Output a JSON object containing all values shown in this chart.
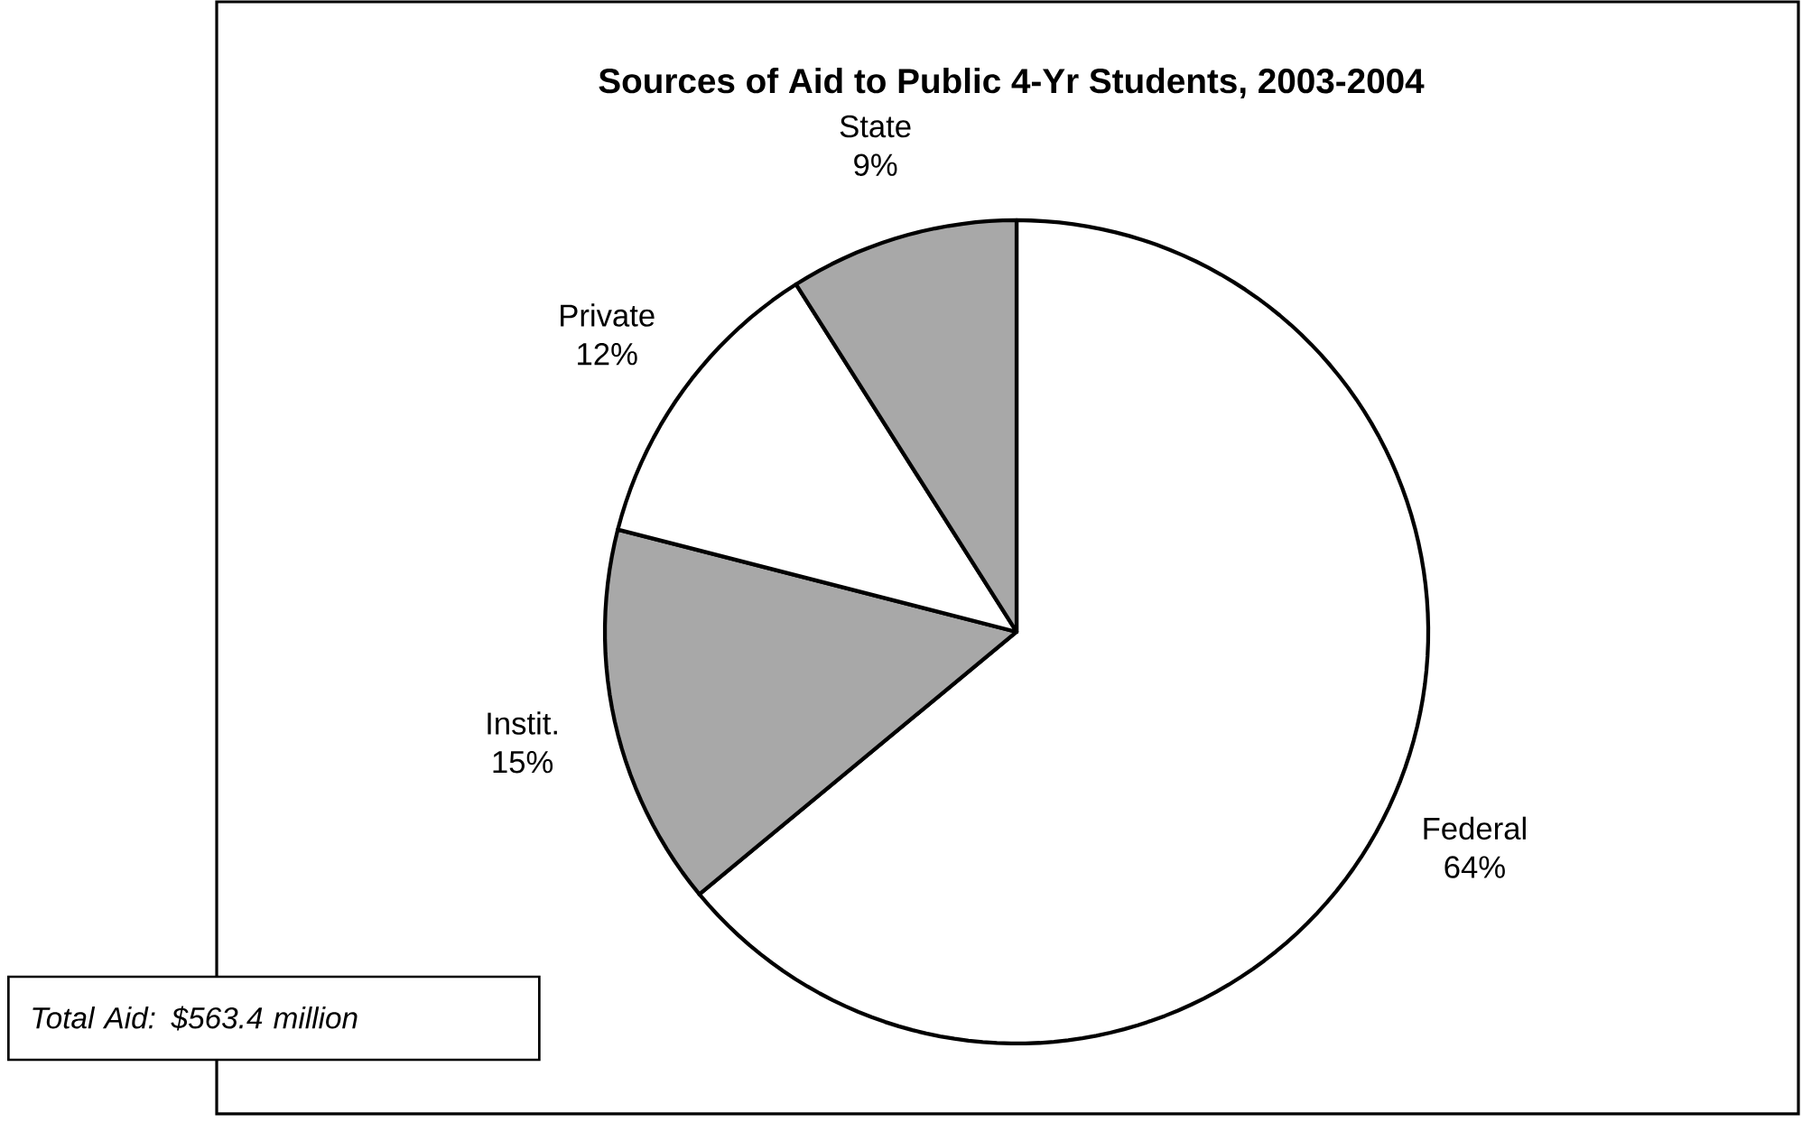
{
  "chart_data": {
    "type": "pie",
    "title": "Sources of Aid to Public 4-Yr Students, 2003-2004",
    "categories": [
      "Federal",
      "Instit.",
      "Private",
      "State"
    ],
    "values": [
      64,
      15,
      12,
      9
    ],
    "value_labels": [
      "64%",
      "15%",
      "12%",
      "9%"
    ],
    "colors": [
      "#ffffff",
      "#a8a8a8",
      "#ffffff",
      "#a8a8a8"
    ],
    "annotations": [
      "Total Aid: $563.4 million"
    ]
  }
}
